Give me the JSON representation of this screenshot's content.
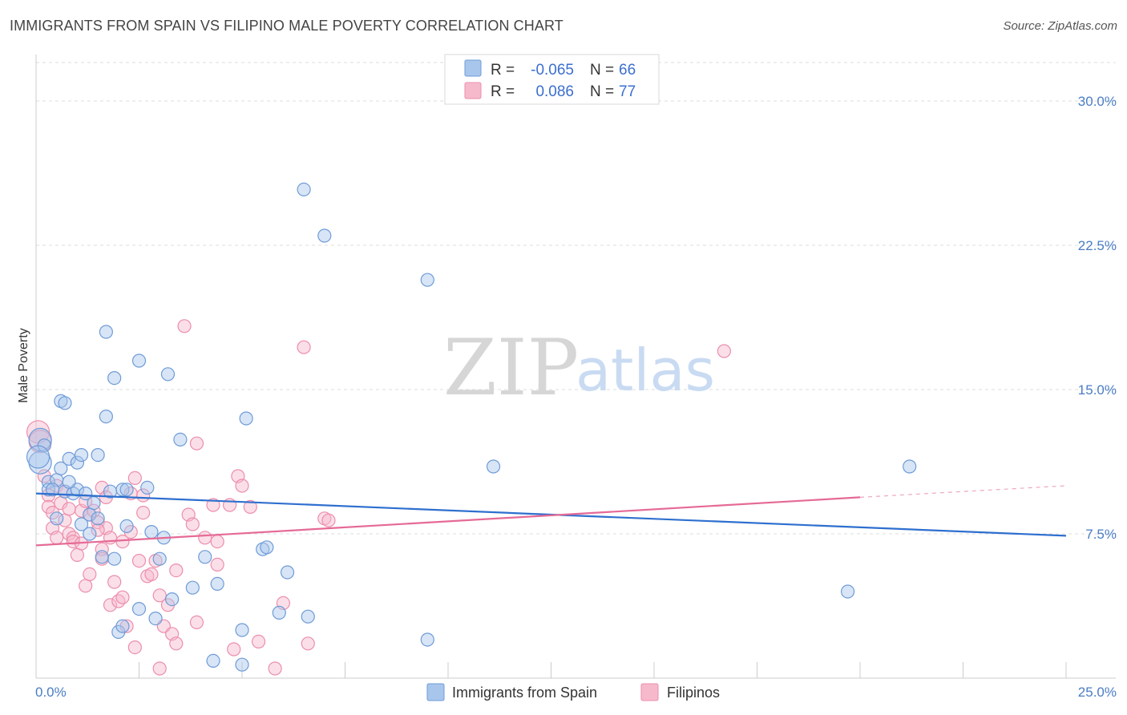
{
  "header": {
    "title": "IMMIGRANTS FROM SPAIN VS FILIPINO MALE POVERTY CORRELATION CHART",
    "source": "Source: ZipAtlas.com"
  },
  "watermark": {
    "zip": "ZIP",
    "atlas": "atlas"
  },
  "legend": {
    "rows": [
      {
        "r_label": "R =",
        "r_value": "-0.065",
        "n_label": "N =",
        "n_value": "66"
      },
      {
        "r_label": "R =",
        "r_value": "0.086",
        "n_label": "N =",
        "n_value": "77"
      }
    ]
  },
  "colors": {
    "blue_fill": "#a8c6ec",
    "blue_stroke": "#6e9bd8",
    "blue_line": "#2e6fce",
    "pink_fill": "#f6b9cc",
    "pink_stroke": "#ec8eab",
    "pink_line": "#e56a96",
    "tick_text": "#4a7dc4",
    "grid": "#dddddd"
  },
  "chart_data": {
    "type": "scatter",
    "title": "IMMIGRANTS FROM SPAIN VS FILIPINO MALE POVERTY CORRELATION CHART",
    "xlabel": "",
    "ylabel": "Male Poverty",
    "xlim": [
      0,
      25
    ],
    "ylim": [
      0,
      32
    ],
    "x_tick_labels": [
      "0.0%",
      "25.0%"
    ],
    "y_ticks": [
      7.5,
      15.0,
      22.5,
      30.0
    ],
    "y_tick_labels": [
      "7.5%",
      "15.0%",
      "22.5%",
      "30.0%"
    ],
    "grid": true,
    "legend_position": "top-center",
    "series": [
      {
        "name": "Immigrants from Spain",
        "color": "#6e9bd8",
        "trend": {
          "x": [
            0,
            25
          ],
          "y": [
            9.6,
            7.4
          ]
        },
        "points": [
          [
            0.1,
            12.4
          ],
          [
            0.1,
            11.2
          ],
          [
            0.2,
            12.1
          ],
          [
            0.3,
            10.2
          ],
          [
            0.3,
            9.8
          ],
          [
            0.5,
            10.3
          ],
          [
            0.5,
            8.3
          ],
          [
            0.6,
            14.4
          ],
          [
            0.6,
            10.9
          ],
          [
            0.7,
            14.3
          ],
          [
            0.7,
            9.7
          ],
          [
            0.8,
            11.4
          ],
          [
            0.9,
            9.6
          ],
          [
            1.0,
            11.2
          ],
          [
            1.0,
            9.8
          ],
          [
            1.1,
            8.0
          ],
          [
            1.1,
            11.6
          ],
          [
            1.3,
            8.5
          ],
          [
            1.3,
            7.5
          ],
          [
            1.4,
            9.1
          ],
          [
            1.5,
            8.3
          ],
          [
            1.5,
            11.6
          ],
          [
            1.6,
            6.3
          ],
          [
            1.7,
            18.0
          ],
          [
            1.7,
            13.6
          ],
          [
            1.8,
            9.7
          ],
          [
            1.9,
            15.6
          ],
          [
            1.9,
            6.2
          ],
          [
            2.0,
            2.4
          ],
          [
            2.1,
            2.7
          ],
          [
            2.1,
            9.8
          ],
          [
            2.2,
            9.8
          ],
          [
            2.2,
            7.9
          ],
          [
            2.5,
            16.5
          ],
          [
            2.5,
            3.6
          ],
          [
            2.8,
            7.6
          ],
          [
            2.9,
            3.1
          ],
          [
            3.0,
            6.2
          ],
          [
            3.1,
            7.3
          ],
          [
            3.2,
            15.8
          ],
          [
            3.3,
            4.1
          ],
          [
            3.5,
            12.4
          ],
          [
            3.8,
            4.7
          ],
          [
            4.1,
            6.3
          ],
          [
            4.3,
            0.9
          ],
          [
            4.4,
            4.9
          ],
          [
            5.0,
            2.5
          ],
          [
            5.0,
            0.7
          ],
          [
            5.1,
            13.5
          ],
          [
            5.5,
            6.7
          ],
          [
            5.6,
            6.8
          ],
          [
            5.9,
            3.4
          ],
          [
            6.1,
            5.5
          ],
          [
            6.5,
            25.4
          ],
          [
            6.6,
            3.2
          ],
          [
            7.0,
            23.0
          ],
          [
            9.5,
            20.7
          ],
          [
            9.5,
            2.0
          ],
          [
            11.1,
            11.0
          ],
          [
            19.7,
            4.5
          ],
          [
            21.2,
            11.0
          ],
          [
            0.05,
            11.5
          ],
          [
            0.4,
            9.8
          ],
          [
            2.7,
            9.9
          ],
          [
            1.2,
            9.6
          ],
          [
            0.8,
            10.2
          ]
        ]
      },
      {
        "name": "Filipinos",
        "color": "#ec8eab",
        "trend": {
          "x": [
            0,
            20
          ],
          "y": [
            6.9,
            9.4
          ]
        },
        "trend_dashed": {
          "x": [
            20,
            25
          ],
          "y": [
            9.4,
            10.0
          ]
        },
        "points": [
          [
            0.05,
            12.8
          ],
          [
            0.1,
            12.3
          ],
          [
            0.2,
            10.5
          ],
          [
            0.3,
            9.5
          ],
          [
            0.3,
            8.9
          ],
          [
            0.4,
            8.6
          ],
          [
            0.4,
            7.8
          ],
          [
            0.5,
            7.3
          ],
          [
            0.5,
            10.0
          ],
          [
            0.6,
            9.1
          ],
          [
            0.7,
            8.2
          ],
          [
            0.7,
            9.7
          ],
          [
            0.8,
            8.8
          ],
          [
            0.8,
            7.5
          ],
          [
            0.9,
            7.3
          ],
          [
            0.9,
            7.1
          ],
          [
            1.0,
            6.4
          ],
          [
            1.1,
            8.7
          ],
          [
            1.1,
            7.0
          ],
          [
            1.2,
            4.8
          ],
          [
            1.2,
            9.2
          ],
          [
            1.3,
            8.5
          ],
          [
            1.3,
            5.4
          ],
          [
            1.4,
            8.7
          ],
          [
            1.5,
            8.1
          ],
          [
            1.6,
            6.7
          ],
          [
            1.6,
            6.2
          ],
          [
            1.6,
            9.9
          ],
          [
            1.7,
            7.8
          ],
          [
            1.7,
            9.4
          ],
          [
            1.8,
            3.8
          ],
          [
            1.8,
            7.3
          ],
          [
            1.9,
            5.0
          ],
          [
            2.0,
            4.0
          ],
          [
            2.1,
            4.2
          ],
          [
            2.1,
            7.1
          ],
          [
            2.2,
            2.7
          ],
          [
            2.3,
            9.6
          ],
          [
            2.3,
            7.6
          ],
          [
            2.4,
            10.4
          ],
          [
            2.4,
            1.6
          ],
          [
            2.5,
            6.1
          ],
          [
            2.6,
            9.5
          ],
          [
            2.6,
            8.6
          ],
          [
            2.7,
            5.3
          ],
          [
            2.8,
            5.4
          ],
          [
            2.9,
            6.1
          ],
          [
            3.0,
            0.5
          ],
          [
            3.0,
            4.3
          ],
          [
            3.1,
            2.7
          ],
          [
            3.2,
            3.8
          ],
          [
            3.3,
            2.3
          ],
          [
            3.4,
            5.6
          ],
          [
            3.4,
            1.8
          ],
          [
            3.6,
            18.3
          ],
          [
            3.7,
            8.5
          ],
          [
            3.8,
            8.0
          ],
          [
            3.9,
            2.9
          ],
          [
            3.9,
            12.2
          ],
          [
            4.1,
            7.3
          ],
          [
            4.3,
            9.0
          ],
          [
            4.4,
            5.9
          ],
          [
            4.4,
            7.1
          ],
          [
            4.7,
            9.0
          ],
          [
            4.8,
            1.5
          ],
          [
            4.9,
            10.5
          ],
          [
            5.0,
            10.0
          ],
          [
            5.2,
            8.9
          ],
          [
            5.4,
            1.9
          ],
          [
            5.8,
            0.5
          ],
          [
            6.0,
            3.9
          ],
          [
            6.5,
            17.2
          ],
          [
            6.6,
            1.8
          ],
          [
            7.0,
            8.3
          ],
          [
            7.1,
            8.2
          ],
          [
            16.7,
            17.0
          ],
          [
            1.5,
            7.7
          ]
        ]
      }
    ]
  },
  "bottom_legend": {
    "items": [
      {
        "label": "Immigrants from Spain"
      },
      {
        "label": "Filipinos"
      }
    ]
  }
}
